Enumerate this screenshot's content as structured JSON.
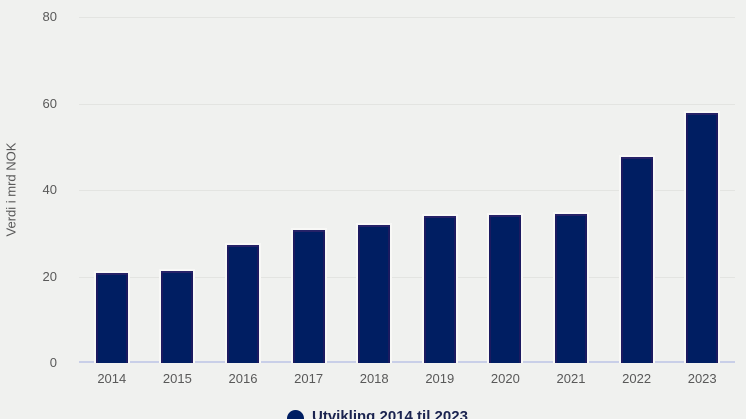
{
  "chart_data": {
    "type": "bar",
    "title": "",
    "xlabel": "",
    "ylabel": "Verdi i mrd NOK",
    "categories": [
      "2014",
      "2015",
      "2016",
      "2017",
      "2018",
      "2019",
      "2020",
      "2021",
      "2022",
      "2023"
    ],
    "series": [
      {
        "name": "Utvikling 2014 til 2023",
        "values": [
          21.2,
          21.8,
          27.8,
          31.1,
          32.4,
          34.4,
          34.7,
          35.0,
          48.1,
          58.2
        ]
      }
    ],
    "ylim": [
      0,
      80
    ],
    "yticks": [
      0,
      20,
      40,
      60,
      80
    ],
    "grid": true,
    "legend_position": "bottom",
    "colors": {
      "bar": "#001e62",
      "background": "#f0f1ef",
      "gridline": "#e3e4e1",
      "baseline": "#c9cfe8",
      "tick_text": "#595959",
      "legend_text": "#1b2450"
    }
  }
}
